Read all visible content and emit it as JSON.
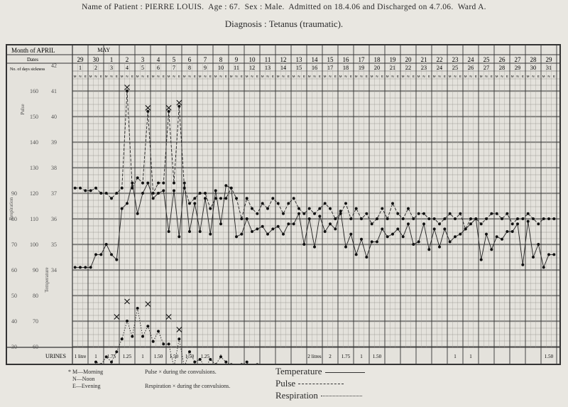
{
  "header": {
    "name_label": "Name of Patient :",
    "name": "PIERRE LOUIS.",
    "age_label": "Age :",
    "age": "67.",
    "sex_label": "Sex :",
    "sex": "Male.",
    "admitted_label": "Admitted on",
    "admitted": "18.4.06",
    "discharged_label": "and Discharged on",
    "discharged": "4.7.06.",
    "ward_label": "Ward",
    "ward": "A.",
    "diagnosis_label": "Diagnosis :",
    "diagnosis": "Tetanus (traumatic)."
  },
  "table": {
    "month_label": "Month of APRIL",
    "dates_label": "Dates",
    "may_label": "MAY",
    "days_label": "No. of days sickness",
    "dates": [
      "29",
      "30",
      "1",
      "2",
      "3",
      "4",
      "5",
      "6",
      "7",
      "8",
      "9",
      "10",
      "11",
      "12",
      "13",
      "14",
      "15",
      "16",
      "17",
      "18",
      "19",
      "20",
      "21",
      "22",
      "23",
      "24",
      "25",
      "26",
      "27",
      "28",
      "29"
    ],
    "days": [
      "1",
      "2",
      "3",
      "4",
      "5",
      "6",
      "7",
      "8",
      "9",
      "10",
      "11",
      "12",
      "13",
      "14",
      "15",
      "16",
      "17",
      "18",
      "19",
      "20",
      "21",
      "22",
      "23",
      "24",
      "25",
      "26",
      "27",
      "28",
      "29",
      "30",
      "31"
    ],
    "slot_labels": [
      "M",
      "N",
      "E"
    ],
    "pulse_label": "Pulse",
    "respiration_label": "Respiration",
    "temperature_label": "Temperature",
    "resp_scale": [
      "90",
      "80",
      "70",
      "60",
      "50",
      "40",
      "30",
      "20",
      "10"
    ],
    "pulse_scale": [
      "160",
      "150",
      "140",
      "130",
      "120",
      "110",
      "100",
      "90",
      "80",
      "70",
      "60",
      "50",
      "40"
    ],
    "temp_scale": [
      "42",
      "41",
      "40",
      "39",
      "38",
      "37",
      "36",
      "35",
      "34"
    ],
    "urines_label": "URINES",
    "urines": [
      "1 litre",
      "1",
      "1.75",
      "1.25",
      "1",
      "1.50",
      "1.50",
      "1.50",
      "1.25",
      "1",
      "",
      "",
      "",
      "",
      "",
      "2 litres",
      "2",
      "1.75",
      "1",
      "1.50",
      "",
      "",
      "",
      "",
      "1",
      "1",
      "",
      "",
      "",
      "",
      "1.50"
    ]
  },
  "footnotes": {
    "morning": "* M—Morning",
    "noon": "N—Noon",
    "evening": "E—Evening",
    "pulse_conv": "Pulse × during the convulsions.",
    "resp_conv": "Respiration × during the convulsions."
  },
  "legend": {
    "temperature": "Temperature",
    "pulse": "Pulse",
    "respiration": "Respiration"
  },
  "chart_data": {
    "type": "line",
    "title": "",
    "xlabel": "",
    "ylabel": "",
    "ylim_temperature": [
      34,
      42
    ],
    "ylim_pulse": [
      40,
      160
    ],
    "ylim_respiration": [
      10,
      90
    ],
    "note": "Readings at Morning, Noon and Evening for each day (3 readings per day column).",
    "series": [
      {
        "name": "Temperature",
        "style": "solid",
        "slots": [
          0,
          1,
          2,
          3,
          4,
          5,
          6,
          7,
          8,
          9,
          10,
          11,
          12,
          13,
          14,
          15,
          16,
          17,
          18,
          19,
          20,
          21,
          22,
          23,
          24,
          25,
          26,
          27,
          28,
          29,
          30,
          31,
          32,
          33,
          34,
          35,
          36,
          37,
          38,
          39,
          40,
          41,
          42,
          43,
          44,
          45,
          46,
          47,
          48,
          49,
          50,
          51,
          52,
          53,
          54,
          55,
          56,
          57,
          58,
          59,
          60,
          61,
          62,
          63,
          64,
          65,
          66,
          67,
          68,
          69,
          70,
          71,
          72,
          73,
          74,
          75,
          76,
          77,
          78,
          79,
          80,
          81,
          82,
          83,
          84,
          85,
          86,
          87,
          88,
          89,
          90,
          91,
          92
        ],
        "values": [
          34.1,
          34.1,
          34.1,
          34.1,
          34.6,
          34.6,
          35.0,
          34.6,
          34.4,
          36.4,
          36.6,
          37.4,
          36.2,
          37.0,
          37.4,
          36.8,
          37.0,
          37.1,
          35.5,
          37.1,
          35.3,
          37.4,
          35.5,
          36.6,
          35.5,
          36.8,
          35.4,
          37.1,
          35.8,
          37.3,
          37.2,
          35.3,
          35.4,
          36.0,
          35.5,
          35.6,
          35.7,
          35.4,
          35.6,
          35.7,
          35.4,
          35.8,
          35.8,
          36.2,
          35.0,
          36.0,
          34.9,
          36.1,
          35.5,
          35.8,
          35.6,
          36.3,
          34.9,
          35.4,
          34.6,
          35.2,
          34.5,
          35.1,
          35.1,
          35.6,
          35.3,
          35.4,
          35.6,
          35.3,
          35.8,
          35.0,
          35.1,
          35.8,
          34.8,
          35.6,
          34.9,
          35.6,
          35.1,
          35.3,
          35.4,
          35.6,
          35.8,
          36.0,
          34.4,
          35.4,
          34.8,
          35.3,
          35.2,
          35.5,
          35.5,
          35.8,
          34.2,
          35.9,
          34.5,
          35.0,
          34.1,
          34.6,
          34.6
        ]
      },
      {
        "name": "Pulse",
        "style": "dashed",
        "slots": [
          0,
          1,
          2,
          3,
          4,
          5,
          6,
          7,
          8,
          9,
          10,
          11,
          12,
          13,
          14,
          15,
          16,
          17,
          18,
          19,
          20,
          21,
          22,
          23,
          24,
          25,
          26,
          27,
          28,
          29,
          30,
          31,
          32,
          33,
          34,
          35,
          36,
          37,
          38,
          39,
          40,
          41,
          42,
          43,
          44,
          45,
          46,
          47,
          48,
          49,
          50,
          51,
          52,
          53,
          54,
          55,
          56,
          57,
          58,
          59,
          60,
          61,
          62,
          63,
          64,
          65,
          66,
          67,
          68,
          69,
          70,
          71,
          72,
          73,
          74,
          75,
          76,
          77,
          78,
          79,
          80,
          81,
          82,
          83,
          84,
          85,
          86,
          87,
          88,
          89,
          90,
          91,
          92
        ],
        "values": [
          122,
          122,
          121,
          121,
          122,
          120,
          120,
          118,
          120,
          122,
          160,
          122,
          126,
          124,
          152,
          120,
          124,
          124,
          152,
          124,
          154,
          122,
          116,
          118,
          120,
          120,
          114,
          118,
          118,
          118,
          122,
          118,
          110,
          118,
          114,
          112,
          116,
          114,
          118,
          116,
          112,
          116,
          118,
          114,
          112,
          114,
          112,
          114,
          116,
          114,
          110,
          112,
          116,
          110,
          114,
          110,
          112,
          108,
          110,
          114,
          110,
          116,
          112,
          110,
          114,
          110,
          112,
          112,
          110,
          110,
          108,
          110,
          112,
          110,
          112,
          106,
          110,
          110,
          108,
          110,
          112,
          112,
          110,
          112,
          108,
          110,
          110,
          112,
          110,
          108,
          110,
          110,
          110
        ]
      },
      {
        "name": "Respiration",
        "style": "dotted",
        "slots": [
          0,
          1,
          2,
          3,
          4,
          5,
          6,
          7,
          8,
          9,
          10,
          11,
          12,
          13,
          14,
          15,
          16,
          17,
          18,
          19,
          20,
          21,
          22,
          23,
          24,
          25,
          26,
          27,
          28,
          29,
          30,
          31,
          32,
          33,
          34,
          35,
          36,
          37,
          38,
          39,
          40,
          41,
          42,
          43,
          44,
          45,
          46,
          47,
          48,
          49,
          50,
          51,
          52,
          53,
          54,
          55,
          56,
          57,
          58,
          59,
          60,
          61,
          62,
          63,
          64,
          65,
          66,
          67,
          68,
          69,
          70,
          71,
          72,
          73,
          74,
          75,
          76,
          77,
          78,
          79,
          80,
          81,
          82,
          83,
          84,
          85,
          86,
          87,
          88,
          89,
          90,
          91,
          92
        ],
        "values": [
          21,
          21,
          22,
          22,
          24,
          23,
          26,
          24,
          28,
          33,
          40,
          34,
          45,
          34,
          38,
          32,
          36,
          31,
          31,
          22,
          33,
          22,
          28,
          24,
          25,
          22,
          25,
          23,
          26,
          24,
          23,
          22,
          23,
          24,
          20,
          23,
          22,
          21,
          22,
          22,
          21,
          21,
          22,
          22,
          21,
          22,
          21,
          21,
          22,
          21,
          21,
          20,
          20,
          21,
          20,
          20,
          21,
          21,
          20,
          21,
          21,
          20,
          20,
          21,
          20,
          21,
          20,
          21,
          20,
          20,
          21,
          20,
          21,
          20,
          20,
          21,
          20,
          20,
          21,
          20,
          20,
          20,
          20,
          20,
          21,
          20,
          20,
          20,
          20,
          20,
          20,
          20,
          20
        ]
      }
    ],
    "pulse_convulsions": [
      {
        "slot": 10,
        "value": 160
      },
      {
        "slot": 14,
        "value": 152
      },
      {
        "slot": 18,
        "value": 152
      },
      {
        "slot": 20,
        "value": 154
      }
    ],
    "respiration_convulsions": [
      {
        "slot": 8,
        "value": 40
      },
      {
        "slot": 10,
        "value": 46
      },
      {
        "slot": 14,
        "value": 45
      },
      {
        "slot": 18,
        "value": 40
      },
      {
        "slot": 20,
        "value": 35
      }
    ]
  }
}
